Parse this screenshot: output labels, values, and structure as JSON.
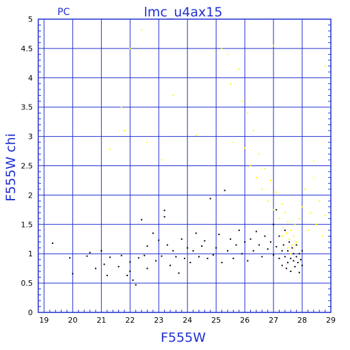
{
  "header": {
    "corner_label": "PC",
    "title": "lmc_u4ax15"
  },
  "chart_data": {
    "type": "scatter",
    "title": "lmc_u4ax15",
    "xlabel": "F555W",
    "ylabel": "F555W chi",
    "xlim": [
      18.8,
      29
    ],
    "ylim": [
      0,
      5
    ],
    "x_ticks": [
      "19",
      "20",
      "21",
      "22",
      "23",
      "24",
      "25",
      "26",
      "27",
      "28",
      "29"
    ],
    "y_ticks": [
      "0",
      "0.5",
      "1",
      "1.5",
      "2",
      "2.5",
      "3",
      "3.5",
      "4",
      "4.5",
      "5"
    ],
    "grid": true,
    "colors": {
      "frame": "#1f2fcf",
      "grid": "#1f2fcf",
      "series_black": "#000000",
      "series_yellow": "#ffff00"
    },
    "series": [
      {
        "color": "#000000",
        "points": [
          [
            19.3,
            1.18
          ],
          [
            19.9,
            0.93
          ],
          [
            20.0,
            0.66
          ],
          [
            20.5,
            0.96
          ],
          [
            20.6,
            1.02
          ],
          [
            20.8,
            0.75
          ],
          [
            21.0,
            1.05
          ],
          [
            21.1,
            0.82
          ],
          [
            21.2,
            0.63
          ],
          [
            21.3,
            0.94
          ],
          [
            21.6,
            0.78
          ],
          [
            21.7,
            0.97
          ],
          [
            21.9,
            0.63
          ],
          [
            22.0,
            0.7
          ],
          [
            22.0,
            0.86
          ],
          [
            22.1,
            0.55
          ],
          [
            22.2,
            0.47
          ],
          [
            22.3,
            0.93
          ],
          [
            22.4,
            1.58
          ],
          [
            22.5,
            0.97
          ],
          [
            22.6,
            0.75
          ],
          [
            22.6,
            1.13
          ],
          [
            22.8,
            1.35
          ],
          [
            22.9,
            0.88
          ],
          [
            23.0,
            1.23
          ],
          [
            23.1,
            0.96
          ],
          [
            23.2,
            1.63
          ],
          [
            23.2,
            1.74
          ],
          [
            23.3,
            1.15
          ],
          [
            23.4,
            0.8
          ],
          [
            23.5,
            1.05
          ],
          [
            23.6,
            0.95
          ],
          [
            23.7,
            0.67
          ],
          [
            23.8,
            1.25
          ],
          [
            23.9,
            0.92
          ],
          [
            24.0,
            1.1
          ],
          [
            24.1,
            0.85
          ],
          [
            24.2,
            1.05
          ],
          [
            24.3,
            1.35
          ],
          [
            24.4,
            0.95
          ],
          [
            24.5,
            1.13
          ],
          [
            24.6,
            1.22
          ],
          [
            24.7,
            0.92
          ],
          [
            24.8,
            1.94
          ],
          [
            24.9,
            0.98
          ],
          [
            25.0,
            1.1
          ],
          [
            25.1,
            1.33
          ],
          [
            25.2,
            0.85
          ],
          [
            25.3,
            2.08
          ],
          [
            25.4,
            1.05
          ],
          [
            25.5,
            1.25
          ],
          [
            25.6,
            0.92
          ],
          [
            25.7,
            1.15
          ],
          [
            25.8,
            1.4
          ],
          [
            25.9,
            1.0
          ],
          [
            26.0,
            1.2
          ],
          [
            26.1,
            0.88
          ],
          [
            26.2,
            1.25
          ],
          [
            26.3,
            1.05
          ],
          [
            26.4,
            1.38
          ],
          [
            26.5,
            1.15
          ],
          [
            26.6,
            0.95
          ],
          [
            26.7,
            1.3
          ],
          [
            26.8,
            1.08
          ],
          [
            26.9,
            1.2
          ],
          [
            27.0,
            0.98
          ],
          [
            27.0,
            1.5
          ],
          [
            27.1,
            1.12
          ],
          [
            27.1,
            1.75
          ],
          [
            27.2,
            0.92
          ],
          [
            27.2,
            1.3
          ],
          [
            27.3,
            1.05
          ],
          [
            27.3,
            0.8
          ],
          [
            27.35,
            1.15
          ],
          [
            27.4,
            0.95
          ],
          [
            27.4,
            1.4
          ],
          [
            27.45,
            0.75
          ],
          [
            27.5,
            1.05
          ],
          [
            27.5,
            0.85
          ],
          [
            27.55,
            1.2
          ],
          [
            27.6,
            0.92
          ],
          [
            27.6,
            0.7
          ],
          [
            27.65,
            1.1
          ],
          [
            27.7,
            0.88
          ],
          [
            27.7,
            1.0
          ],
          [
            27.75,
            0.78
          ],
          [
            27.8,
            0.95
          ],
          [
            27.8,
            1.15
          ],
          [
            27.85,
            0.85
          ],
          [
            27.9,
            0.68
          ],
          [
            27.9,
            1.0
          ],
          [
            27.95,
            0.9
          ],
          [
            28.0,
            0.8
          ],
          [
            28.0,
            1.05
          ]
        ]
      },
      {
        "color": "#ffff00",
        "points": [
          [
            21.3,
            2.78
          ],
          [
            21.7,
            3.5
          ],
          [
            21.8,
            3.1
          ],
          [
            22.0,
            4.5
          ],
          [
            22.4,
            4.82
          ],
          [
            22.6,
            2.9
          ],
          [
            23.1,
            2.6
          ],
          [
            23.5,
            3.7
          ],
          [
            24.3,
            3.02
          ],
          [
            25.2,
            4.5
          ],
          [
            25.4,
            4.4
          ],
          [
            25.5,
            3.9
          ],
          [
            25.6,
            2.9
          ],
          [
            25.8,
            4.15
          ],
          [
            25.9,
            3.6
          ],
          [
            26.0,
            2.8
          ],
          [
            26.1,
            3.4
          ],
          [
            26.2,
            2.5
          ],
          [
            26.3,
            3.1
          ],
          [
            26.4,
            2.3
          ],
          [
            26.5,
            2.7
          ],
          [
            26.6,
            2.1
          ],
          [
            26.7,
            2.45
          ],
          [
            26.8,
            1.9
          ],
          [
            26.9,
            2.25
          ],
          [
            27.0,
            1.75
          ],
          [
            27.1,
            2.05
          ],
          [
            27.2,
            1.6
          ],
          [
            27.3,
            1.85
          ],
          [
            27.35,
            1.45
          ],
          [
            27.4,
            1.7
          ],
          [
            27.45,
            1.35
          ],
          [
            27.5,
            1.55
          ],
          [
            27.55,
            1.25
          ],
          [
            27.6,
            1.4
          ],
          [
            27.65,
            1.15
          ],
          [
            27.7,
            1.3
          ],
          [
            27.75,
            1.5
          ],
          [
            27.8,
            1.2
          ],
          [
            27.9,
            1.6
          ],
          [
            28.0,
            1.8
          ],
          [
            28.1,
            2.1
          ],
          [
            28.2,
            1.4
          ],
          [
            28.3,
            1.7
          ],
          [
            28.4,
            2.3
          ],
          [
            28.5,
            1.5
          ],
          [
            28.6,
            1.9
          ],
          [
            28.7,
            1.3
          ],
          [
            28.8,
            1.65
          ],
          [
            28.8,
            4.2
          ],
          [
            28.4,
            2.58
          ],
          [
            27.0,
            4.55
          ],
          [
            27.3,
            1.3
          ],
          [
            27.5,
            1.1
          ],
          [
            27.6,
            1.0
          ]
        ]
      }
    ]
  }
}
